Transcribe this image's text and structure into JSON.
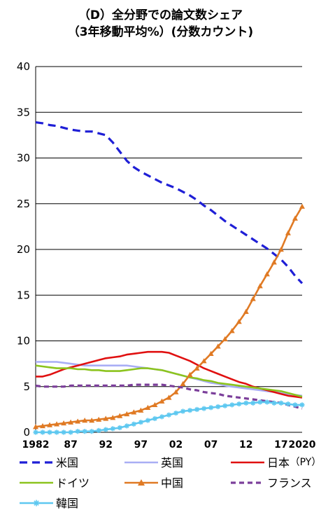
{
  "title_line1": "（D）全分野での論文数シェア",
  "title_line2": "（3年移動平均%）(分数カウント)",
  "chart_data": {
    "type": "line",
    "xlabel": "",
    "ylabel": "",
    "x_unit_label": "（PY）",
    "xlim": [
      1982,
      2020
    ],
    "ylim": [
      0,
      40
    ],
    "y_ticks": [
      0,
      5,
      10,
      15,
      20,
      25,
      30,
      35,
      40
    ],
    "x_ticks": [
      1982,
      1987,
      1992,
      1997,
      2002,
      2007,
      2012,
      2017,
      2020
    ],
    "x_tick_labels": [
      "1982",
      "87",
      "92",
      "97",
      "02",
      "07",
      "12",
      "17",
      "2020"
    ],
    "grid": "horizontal",
    "legend_position": "bottom",
    "x": [
      1982,
      1983,
      1984,
      1985,
      1986,
      1987,
      1988,
      1989,
      1990,
      1991,
      1992,
      1993,
      1994,
      1995,
      1996,
      1997,
      1998,
      1999,
      2000,
      2001,
      2002,
      2003,
      2004,
      2005,
      2006,
      2007,
      2008,
      2009,
      2010,
      2011,
      2012,
      2013,
      2014,
      2015,
      2016,
      2017,
      2018,
      2019,
      2020
    ],
    "series": [
      {
        "name": "米国",
        "color": "#1f1fd6",
        "dash": "dashed",
        "marker": "none",
        "values": [
          33.9,
          33.8,
          33.6,
          33.5,
          33.3,
          33.1,
          33.0,
          32.9,
          32.9,
          32.7,
          32.5,
          31.7,
          30.7,
          29.7,
          29.0,
          28.5,
          28.1,
          27.7,
          27.3,
          27.0,
          26.7,
          26.3,
          25.9,
          25.4,
          24.8,
          24.3,
          23.7,
          23.1,
          22.6,
          22.1,
          21.6,
          21.1,
          20.6,
          20.1,
          19.5,
          18.9,
          18.1,
          17.1,
          16.3
        ]
      },
      {
        "name": "英国",
        "color": "#a9aef5",
        "dash": "solid",
        "marker": "none",
        "values": [
          7.7,
          7.7,
          7.7,
          7.7,
          7.6,
          7.5,
          7.4,
          7.3,
          7.3,
          7.3,
          7.3,
          7.3,
          7.3,
          7.3,
          7.2,
          7.1,
          7.0,
          6.9,
          6.8,
          6.6,
          6.4,
          6.2,
          6.0,
          5.8,
          5.6,
          5.4,
          5.3,
          5.1,
          5.0,
          4.9,
          4.8,
          4.7,
          4.6,
          4.5,
          4.4,
          4.3,
          4.2,
          4.1,
          4.0
        ]
      },
      {
        "name": "日本",
        "color": "#e01010",
        "dash": "solid",
        "marker": "none",
        "values": [
          6.1,
          6.1,
          6.3,
          6.6,
          6.9,
          7.1,
          7.3,
          7.5,
          7.7,
          7.9,
          8.1,
          8.2,
          8.3,
          8.5,
          8.6,
          8.7,
          8.8,
          8.8,
          8.8,
          8.7,
          8.4,
          8.1,
          7.8,
          7.4,
          7.0,
          6.7,
          6.4,
          6.1,
          5.8,
          5.5,
          5.3,
          5.0,
          4.8,
          4.6,
          4.4,
          4.2,
          4.0,
          3.9,
          3.8
        ]
      },
      {
        "name": "ドイツ",
        "color": "#8cc41e",
        "dash": "solid",
        "marker": "none",
        "values": [
          7.3,
          7.2,
          7.1,
          7.0,
          7.0,
          7.0,
          6.9,
          6.9,
          6.8,
          6.8,
          6.7,
          6.7,
          6.7,
          6.8,
          6.9,
          7.0,
          7.0,
          6.9,
          6.8,
          6.6,
          6.4,
          6.2,
          6.0,
          5.9,
          5.7,
          5.6,
          5.4,
          5.3,
          5.2,
          5.1,
          5.0,
          4.9,
          4.8,
          4.7,
          4.6,
          4.5,
          4.3,
          4.1,
          3.9
        ]
      },
      {
        "name": "中国",
        "color": "#e07a24",
        "dash": "solid",
        "marker": "triangle",
        "values": [
          0.6,
          0.7,
          0.8,
          0.9,
          1.0,
          1.1,
          1.2,
          1.3,
          1.3,
          1.4,
          1.5,
          1.6,
          1.8,
          2.0,
          2.2,
          2.4,
          2.7,
          3.0,
          3.4,
          3.8,
          4.4,
          5.3,
          6.3,
          7.0,
          7.8,
          8.6,
          9.4,
          10.2,
          11.1,
          12.1,
          13.2,
          14.6,
          16.0,
          17.3,
          18.6,
          20.0,
          21.8,
          23.4,
          24.7
        ]
      },
      {
        "name": "フランス",
        "color": "#7b3e9a",
        "dash": "dashed",
        "marker": "none",
        "values": [
          5.1,
          5.0,
          5.0,
          5.0,
          5.0,
          5.1,
          5.1,
          5.1,
          5.1,
          5.1,
          5.1,
          5.1,
          5.1,
          5.1,
          5.2,
          5.2,
          5.2,
          5.2,
          5.2,
          5.1,
          5.0,
          4.9,
          4.7,
          4.6,
          4.4,
          4.3,
          4.2,
          4.0,
          3.9,
          3.8,
          3.7,
          3.6,
          3.5,
          3.4,
          3.3,
          3.2,
          3.0,
          2.8,
          2.6
        ]
      },
      {
        "name": "韓国",
        "color": "#5ec8f0",
        "dash": "solid",
        "marker": "asterisk",
        "values": [
          0.0,
          0.0,
          0.0,
          0.0,
          0.0,
          0.0,
          0.1,
          0.1,
          0.1,
          0.2,
          0.3,
          0.4,
          0.5,
          0.7,
          0.9,
          1.1,
          1.3,
          1.5,
          1.7,
          1.9,
          2.1,
          2.3,
          2.4,
          2.5,
          2.6,
          2.7,
          2.8,
          2.9,
          3.0,
          3.1,
          3.2,
          3.2,
          3.3,
          3.3,
          3.2,
          3.2,
          3.1,
          3.0,
          3.0
        ]
      }
    ]
  }
}
